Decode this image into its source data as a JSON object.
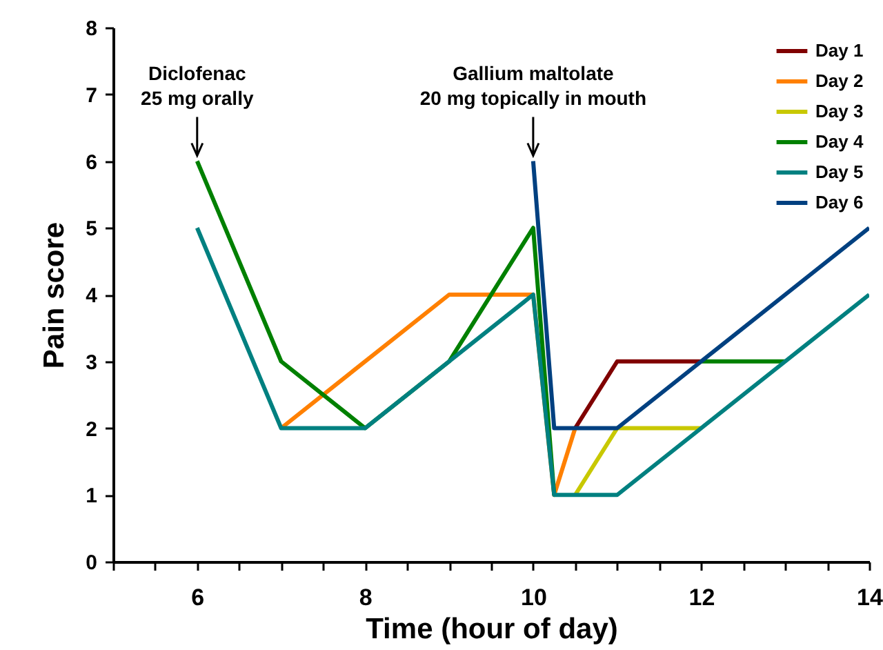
{
  "chart_data": {
    "type": "line",
    "xlabel": "Time (hour of day)",
    "ylabel": "Pain score",
    "xlim": [
      5,
      14
    ],
    "ylim": [
      0,
      8
    ],
    "xticks": [
      {
        "value": 5,
        "label": null
      },
      {
        "value": 5.5,
        "label": null
      },
      6,
      {
        "value": 6.5,
        "label": null
      },
      {
        "value": 7,
        "label": null
      },
      {
        "value": 7.5,
        "label": null
      },
      8,
      {
        "value": 8.5,
        "label": null
      },
      {
        "value": 9,
        "label": null
      },
      {
        "value": 9.5,
        "label": null
      },
      10,
      {
        "value": 10.5,
        "label": null
      },
      {
        "value": 11,
        "label": null
      },
      {
        "value": 11.5,
        "label": null
      },
      12,
      {
        "value": 12.5,
        "label": null
      },
      {
        "value": 13,
        "label": null
      },
      {
        "value": 13.5,
        "label": null
      },
      14
    ],
    "yticks": [
      0,
      1,
      2,
      3,
      4,
      5,
      6,
      7,
      8
    ],
    "grid": false,
    "legend": "top right",
    "annotations": [
      {
        "text": "Diclofenac\n25 mg orally",
        "x": 6,
        "y": 6
      },
      {
        "text": "Gallium maltolate\n20 mg topically in mouth",
        "x": 10,
        "y": 6
      }
    ],
    "series": [
      {
        "name": "Day 1",
        "color": "#800000",
        "x": [
          10.5,
          11,
          12
        ],
        "values": [
          2,
          3,
          3
        ]
      },
      {
        "name": "Day 2",
        "color": "#ff8000",
        "x": [
          7,
          9,
          10,
          10.25,
          10.5
        ],
        "values": [
          2,
          4,
          4,
          1,
          2
        ]
      },
      {
        "name": "Day 3",
        "color": "#c8c800",
        "x": [
          10.5,
          11,
          12
        ],
        "values": [
          1,
          2,
          2
        ]
      },
      {
        "name": "Day 4",
        "color": "#008000",
        "x": [
          6,
          7,
          8,
          9,
          10,
          10.25,
          10.5,
          11,
          12,
          13
        ],
        "values": [
          6,
          3,
          2,
          3,
          5,
          1,
          null,
          null,
          3,
          3
        ]
      },
      {
        "name": "Day 5",
        "color": "#008080",
        "x": [
          6,
          7,
          8,
          9,
          10,
          10.25,
          10.5,
          11,
          12,
          13,
          14
        ],
        "values": [
          5,
          2,
          2,
          3,
          4,
          1,
          1,
          1,
          2,
          3,
          4
        ]
      },
      {
        "name": "Day 6",
        "color": "#004080",
        "x": [
          10,
          10.25,
          11,
          12,
          13,
          14
        ],
        "values": [
          6,
          2,
          2,
          3,
          4,
          5
        ]
      }
    ]
  }
}
